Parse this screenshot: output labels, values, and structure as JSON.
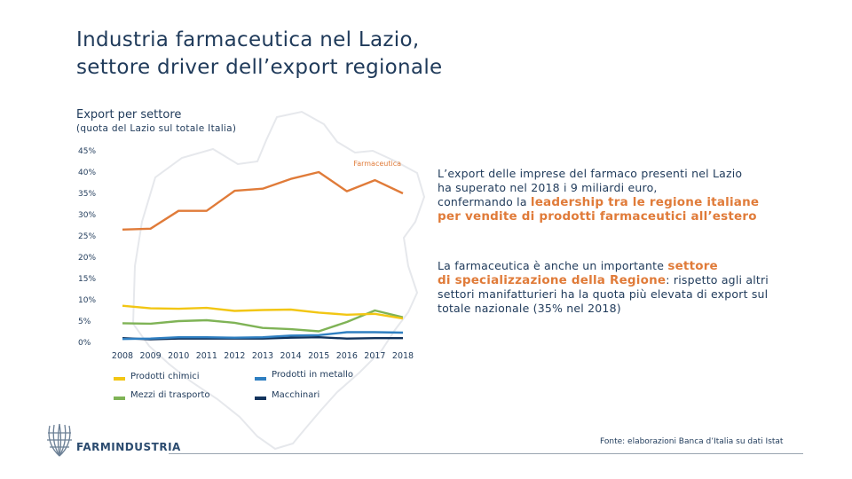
{
  "title": {
    "line1": "Industria farmaceutica nel Lazio,",
    "line2": "settore driver dell’export regionale"
  },
  "subtitle": "Export per settore",
  "subtitle_note": "(quota del Lazio sul totale Italia)",
  "chart_data": {
    "type": "line",
    "categories": [
      "2008",
      "2009",
      "2010",
      "2011",
      "2012",
      "2013",
      "2014",
      "2015",
      "2016",
      "2017",
      "2018"
    ],
    "yticks": [
      "0%",
      "5%",
      "10%",
      "15%",
      "20%",
      "25%",
      "30%",
      "35%",
      "40%",
      "45%"
    ],
    "ylim": [
      0,
      45
    ],
    "series": [
      {
        "name": "Farmaceutica",
        "color": "#e07b39",
        "values": [
          26.5,
          26.7,
          30.9,
          30.9,
          35.6,
          36.1,
          38.4,
          40.0,
          35.5,
          38.1,
          35.0
        ]
      },
      {
        "name": "Prodotti chimici",
        "color": "#f2c614",
        "values": [
          8.6,
          8.0,
          7.9,
          8.1,
          7.4,
          7.6,
          7.7,
          7.0,
          6.5,
          6.7,
          5.6
        ]
      },
      {
        "name": "Mezzi di trasporto",
        "color": "#7fb356",
        "values": [
          4.5,
          4.4,
          5.0,
          5.2,
          4.6,
          3.4,
          3.1,
          2.6,
          4.8,
          7.5,
          5.9
        ]
      },
      {
        "name": "Prodotti in metallo",
        "color": "#2f7fc1",
        "values": [
          0.8,
          0.9,
          1.2,
          1.2,
          1.1,
          1.2,
          1.6,
          1.7,
          2.4,
          2.4,
          2.3
        ]
      },
      {
        "name": "Macchinari",
        "color": "#12335c",
        "values": [
          1.0,
          0.7,
          0.9,
          0.9,
          0.9,
          0.9,
          1.1,
          1.2,
          0.9,
          1.0,
          1.0
        ]
      }
    ],
    "inline_label": "Farmaceutica"
  },
  "legend": [
    {
      "label": "Prodotti chimici",
      "color": "#f2c614"
    },
    {
      "label": "Prodotti in metallo",
      "color": "#2f7fc1"
    },
    {
      "label": "Mezzi di trasporto",
      "color": "#7fb356"
    },
    {
      "label": "Macchinari",
      "color": "#12335c"
    }
  ],
  "paragraph1": {
    "t1": "L’export delle imprese del farmaco presenti nel Lazio",
    "t2": "ha superato nel 2018 i 9 miliardi euro,",
    "t3": "confermando la ",
    "h1": "leadership tra le regione italiane",
    "h2": "per vendite di prodotti farmaceutici all’estero"
  },
  "paragraph2": {
    "t1": "La farmaceutica è anche un importante ",
    "h1": "settore",
    "h2": "di specializzazione della Regione",
    "t2": ": rispetto agli altri",
    "t3": "settori manifatturieri ha la quota più elevata di export sul",
    "t4": "totale nazionale (35% nel 2018)"
  },
  "logo_text": "FARMINDUSTRIA",
  "source": "Fonte: elaborazioni Banca d’Italia su dati Istat"
}
